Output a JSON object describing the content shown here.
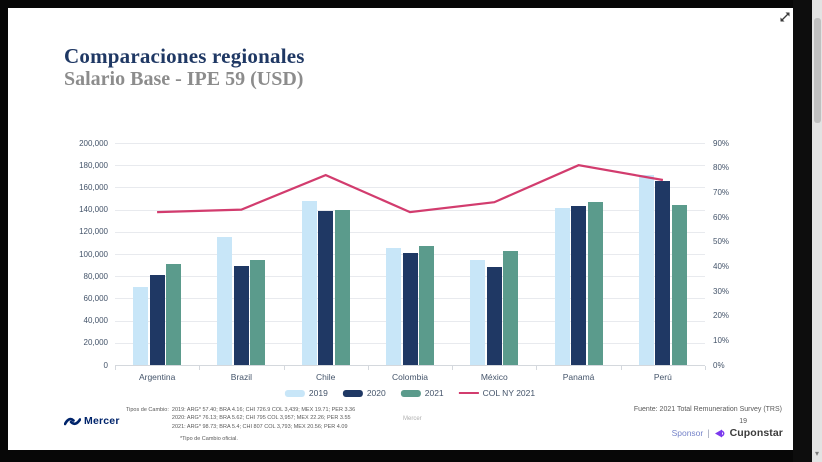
{
  "frame": {
    "scroll_down_arrow": "▾"
  },
  "slide": {
    "title": "Comparaciones regionales",
    "subtitle": "Salario Base - IPE 59 (USD)",
    "footer": {
      "mercer_logo_text": "Mercer",
      "tipos_label": "Tipos de Cambio:",
      "tipos_lines": [
        "2019: ARG* 57.40; BRA 4.16; CHI 726.9 COL 3,439; MEX 19.71; PER 3.36",
        "2020: ARG* 76.13; BRA 5.62; CHI 795 COL 3,957; MEX 22.26; PER 3.55",
        "2021: ARG* 98.73; BRA 5.4; CHI 807 COL 3,793; MEX 20.56; PER 4.09"
      ],
      "tipos_footnote": "*Tipo de Cambio oficial.",
      "watermark": "Mercer",
      "fuente": "Fuente: 2021 Total Remuneration Survey (TRS)",
      "page_number": "19",
      "sponsor_label": "Sponsor",
      "sponsor_separator": "|",
      "sponsor_brand": "Cuponstar"
    }
  },
  "chart_data": {
    "type": "bar",
    "subtype": "grouped bars with secondary-axis line",
    "categories": [
      "Argentina",
      "Brazil",
      "Chile",
      "Colombia",
      "México",
      "Panamá",
      "Perú"
    ],
    "series": [
      {
        "name": "2019",
        "kind": "bar",
        "color": "#C8E6F8",
        "axis": "left",
        "values": [
          70000,
          115000,
          148000,
          105000,
          95000,
          141000,
          171000
        ]
      },
      {
        "name": "2020",
        "kind": "bar",
        "color": "#1F3864",
        "axis": "left",
        "values": [
          81000,
          89000,
          139000,
          101000,
          88000,
          143000,
          166000
        ]
      },
      {
        "name": "2021",
        "kind": "bar",
        "color": "#5B9B8C",
        "axis": "left",
        "values": [
          91000,
          95000,
          140000,
          107000,
          103000,
          147000,
          144000
        ]
      },
      {
        "name": "COL NY 2021",
        "kind": "line",
        "color": "#D23C6E",
        "axis": "right",
        "values": [
          62,
          63,
          77,
          62,
          66,
          81,
          75
        ]
      }
    ],
    "left_axis": {
      "min": 0,
      "max": 200000,
      "step": 20000
    },
    "right_axis": {
      "min": 0,
      "max": 90,
      "step": 10,
      "suffix": "%"
    },
    "grid": true,
    "legend_position": "bottom"
  }
}
